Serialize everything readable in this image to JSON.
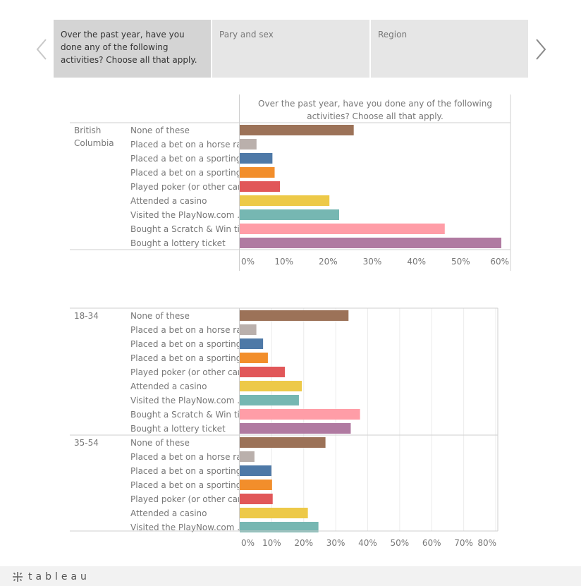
{
  "tabs": [
    {
      "label": "Over the past year, have you done any of the following activities? Choose all that apply."
    },
    {
      "label": "Pary and sex"
    },
    {
      "label": "Region"
    }
  ],
  "footer": {
    "brand": "tableau"
  },
  "colors": {
    "None of these": "#9c7258",
    "Placed a bet on a horse ra..": "#bab0ac",
    "Placed a bet on a sporting..|1": "#4e79a7",
    "Placed a bet on a sporting..|2": "#f28e2b",
    "Played poker (or other car..": "#e15759",
    "Attended a casino": "#edc948",
    "Visited the PlayNow.com ..": "#76b7b2",
    "Bought a Scratch & Win ti..": "#ff9da7",
    "Bought a lottery ticket": "#b07aa1"
  },
  "chart_data": [
    {
      "type": "bar",
      "orientation": "horizontal",
      "title": "Over the past year, have you done any of the following activities? Choose all that apply.",
      "xlim": [
        0,
        60
      ],
      "x_ticks": [
        "0%",
        "10%",
        "20%",
        "30%",
        "40%",
        "50%",
        "60%"
      ],
      "grid": false,
      "groups": [
        {
          "name": "British Columbia",
          "categories": [
            "None of these",
            "Placed a bet on a horse ra..",
            "Placed a bet on a sporting..",
            "Placed a bet on a sporting..",
            "Played poker (or other car..",
            "Attended a casino",
            "Visited the PlayNow.com ..",
            "Bought a Scratch & Win ti..",
            "Bought a lottery ticket"
          ],
          "values": [
            25.8,
            3.8,
            7.4,
            7.9,
            9.1,
            20.3,
            22.5,
            46.4,
            59.2
          ]
        }
      ]
    },
    {
      "type": "bar",
      "orientation": "horizontal",
      "title": "",
      "xlim": [
        0,
        80
      ],
      "x_ticks": [
        "0%",
        "10%",
        "20%",
        "30%",
        "40%",
        "50%",
        "60%",
        "70%",
        "80%"
      ],
      "grid": true,
      "groups": [
        {
          "name": "18-34",
          "categories": [
            "None of these",
            "Placed a bet on a horse ra..",
            "Placed a bet on a sporting..",
            "Placed a bet on a sporting..",
            "Played poker (or other car..",
            "Attended a casino",
            "Visited the PlayNow.com ..",
            "Bought a Scratch & Win ti..",
            "Bought a lottery ticket"
          ],
          "values": [
            34.0,
            5.2,
            7.3,
            8.8,
            14.1,
            19.4,
            18.5,
            37.6,
            34.7
          ]
        },
        {
          "name": "35-54",
          "categories": [
            "None of these",
            "Placed a bet on a horse ra..",
            "Placed a bet on a sporting..",
            "Placed a bet on a sporting..",
            "Played poker (or other car..",
            "Attended a casino",
            "Visited the PlayNow.com .."
          ],
          "values": [
            26.8,
            4.6,
            9.9,
            10.1,
            10.3,
            21.3,
            24.6
          ]
        }
      ]
    }
  ]
}
